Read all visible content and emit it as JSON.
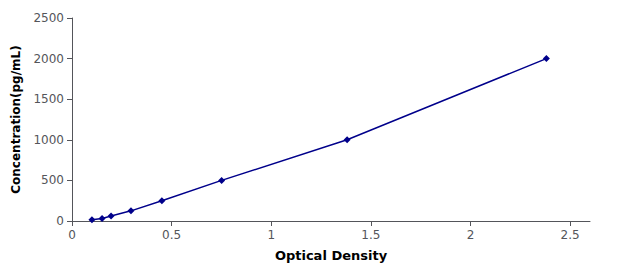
{
  "chart_data": {
    "type": "line",
    "xlabel": "Optical Density",
    "ylabel": "Concentration(pg/mL)",
    "x": [
      0.1,
      0.151,
      0.196,
      0.296,
      0.451,
      0.751,
      1.381,
      2.381
    ],
    "values": [
      15.6,
      31.25,
      62.5,
      125.0,
      250.0,
      500.0,
      1000.0,
      2000.0
    ],
    "color": "#00008B",
    "marker": "diamond",
    "line_style": "solid",
    "xlim": [
      0.0,
      2.6
    ],
    "ylim": [
      0,
      2500
    ],
    "xticks": [
      0,
      0.5,
      1,
      1.5,
      2,
      2.5
    ],
    "yticks": [
      0,
      500,
      1000,
      1500,
      2000,
      2500
    ],
    "grid": false
  }
}
